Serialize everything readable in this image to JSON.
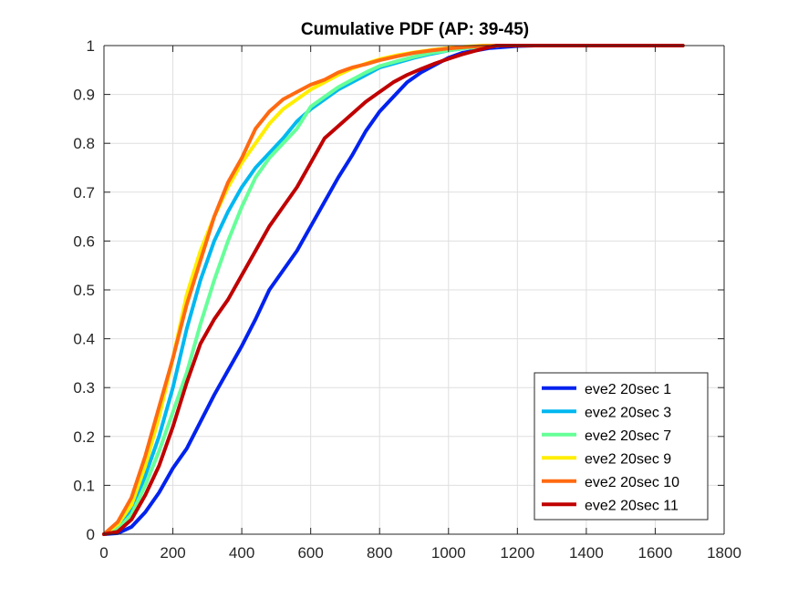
{
  "chart_data": {
    "type": "line",
    "title": "Cumulative PDF (AP: 39-45)",
    "xlabel": "",
    "ylabel": "",
    "xlim": [
      0,
      1800
    ],
    "ylim": [
      0,
      1
    ],
    "x_ticks": [
      0,
      200,
      400,
      600,
      800,
      1000,
      1200,
      1400,
      1600,
      1800
    ],
    "y_ticks": [
      0,
      0.1,
      0.2,
      0.3,
      0.4,
      0.5,
      0.6,
      0.7,
      0.8,
      0.9,
      1
    ],
    "grid": true,
    "legend_position": "bottom-right",
    "series": [
      {
        "name": "eve2 20sec 1",
        "color": "#0022ee",
        "x": [
          0,
          40,
          80,
          120,
          160,
          200,
          240,
          280,
          320,
          360,
          400,
          440,
          480,
          520,
          560,
          600,
          640,
          680,
          720,
          760,
          800,
          840,
          880,
          920,
          960,
          1000,
          1040,
          1080,
          1120,
          1160,
          1200,
          1250,
          1300,
          1400,
          1500,
          1600,
          1680
        ],
        "y": [
          0,
          0.002,
          0.015,
          0.045,
          0.085,
          0.135,
          0.175,
          0.23,
          0.285,
          0.335,
          0.385,
          0.44,
          0.5,
          0.54,
          0.58,
          0.63,
          0.68,
          0.73,
          0.775,
          0.825,
          0.865,
          0.895,
          0.925,
          0.945,
          0.96,
          0.975,
          0.985,
          0.99,
          0.995,
          0.997,
          0.999,
          1.0,
          1.0,
          1.0,
          1.0,
          1.0,
          1.0
        ]
      },
      {
        "name": "eve2 20sec 3",
        "color": "#00b8f0",
        "x": [
          0,
          40,
          80,
          120,
          160,
          200,
          240,
          280,
          320,
          360,
          400,
          440,
          480,
          520,
          560,
          600,
          640,
          680,
          720,
          760,
          800,
          850,
          900,
          950,
          1000,
          1050,
          1100,
          1150,
          1200,
          1300,
          1400,
          1500,
          1600,
          1680
        ],
        "y": [
          0,
          0.015,
          0.05,
          0.12,
          0.2,
          0.3,
          0.42,
          0.52,
          0.6,
          0.66,
          0.71,
          0.75,
          0.78,
          0.81,
          0.845,
          0.87,
          0.89,
          0.91,
          0.925,
          0.94,
          0.955,
          0.965,
          0.975,
          0.983,
          0.99,
          0.995,
          0.998,
          1.0,
          1.0,
          1.0,
          1.0,
          1.0,
          1.0,
          1.0
        ]
      },
      {
        "name": "eve2 20sec 7",
        "color": "#66ff99",
        "x": [
          0,
          40,
          80,
          120,
          160,
          200,
          240,
          280,
          320,
          360,
          400,
          440,
          480,
          520,
          560,
          600,
          640,
          680,
          720,
          760,
          800,
          850,
          900,
          950,
          1000,
          1050,
          1100,
          1150,
          1200,
          1300,
          1400,
          1500,
          1600,
          1680
        ],
        "y": [
          0,
          0.01,
          0.04,
          0.1,
          0.17,
          0.25,
          0.33,
          0.43,
          0.52,
          0.6,
          0.67,
          0.73,
          0.77,
          0.8,
          0.83,
          0.875,
          0.895,
          0.915,
          0.93,
          0.945,
          0.958,
          0.968,
          0.977,
          0.985,
          0.99,
          0.995,
          0.998,
          1.0,
          1.0,
          1.0,
          1.0,
          1.0,
          1.0,
          1.0
        ]
      },
      {
        "name": "eve2 20sec 9",
        "color": "#ffee00",
        "x": [
          0,
          40,
          80,
          120,
          160,
          200,
          240,
          280,
          320,
          360,
          400,
          440,
          480,
          520,
          560,
          600,
          640,
          680,
          720,
          760,
          800,
          850,
          900,
          950,
          1000,
          1050,
          1100,
          1150,
          1200,
          1300,
          1400,
          1500,
          1600,
          1680
        ],
        "y": [
          0,
          0.02,
          0.06,
          0.14,
          0.24,
          0.36,
          0.49,
          0.58,
          0.65,
          0.71,
          0.76,
          0.8,
          0.84,
          0.87,
          0.89,
          0.91,
          0.925,
          0.94,
          0.953,
          0.963,
          0.972,
          0.98,
          0.986,
          0.991,
          0.995,
          0.998,
          1.0,
          1.0,
          1.0,
          1.0,
          1.0,
          1.0,
          1.0,
          1.0
        ]
      },
      {
        "name": "eve2 20sec 10",
        "color": "#ff6a10",
        "x": [
          0,
          40,
          80,
          120,
          160,
          200,
          240,
          280,
          320,
          360,
          400,
          440,
          480,
          520,
          560,
          600,
          640,
          680,
          720,
          760,
          800,
          850,
          900,
          950,
          1000,
          1050,
          1100,
          1150,
          1200,
          1300,
          1400,
          1500,
          1600,
          1680
        ],
        "y": [
          0,
          0.025,
          0.075,
          0.16,
          0.26,
          0.36,
          0.47,
          0.56,
          0.65,
          0.72,
          0.77,
          0.83,
          0.865,
          0.89,
          0.905,
          0.92,
          0.93,
          0.945,
          0.955,
          0.962,
          0.97,
          0.978,
          0.985,
          0.99,
          0.994,
          0.997,
          0.999,
          1.0,
          1.0,
          1.0,
          1.0,
          1.0,
          1.0,
          1.0
        ]
      },
      {
        "name": "eve2 20sec 11",
        "color": "#c00000",
        "x": [
          0,
          40,
          80,
          120,
          160,
          200,
          240,
          280,
          320,
          360,
          400,
          440,
          480,
          520,
          560,
          600,
          640,
          680,
          720,
          760,
          800,
          840,
          880,
          920,
          960,
          1000,
          1040,
          1080,
          1120,
          1140,
          1200,
          1300,
          1400,
          1500,
          1600,
          1680
        ],
        "y": [
          0,
          0.005,
          0.03,
          0.08,
          0.14,
          0.22,
          0.31,
          0.39,
          0.44,
          0.48,
          0.53,
          0.58,
          0.63,
          0.67,
          0.71,
          0.76,
          0.81,
          0.835,
          0.86,
          0.885,
          0.905,
          0.925,
          0.94,
          0.952,
          0.963,
          0.973,
          0.982,
          0.99,
          0.997,
          1.0,
          1.0,
          1.0,
          1.0,
          1.0,
          1.0,
          1.0
        ]
      }
    ]
  }
}
